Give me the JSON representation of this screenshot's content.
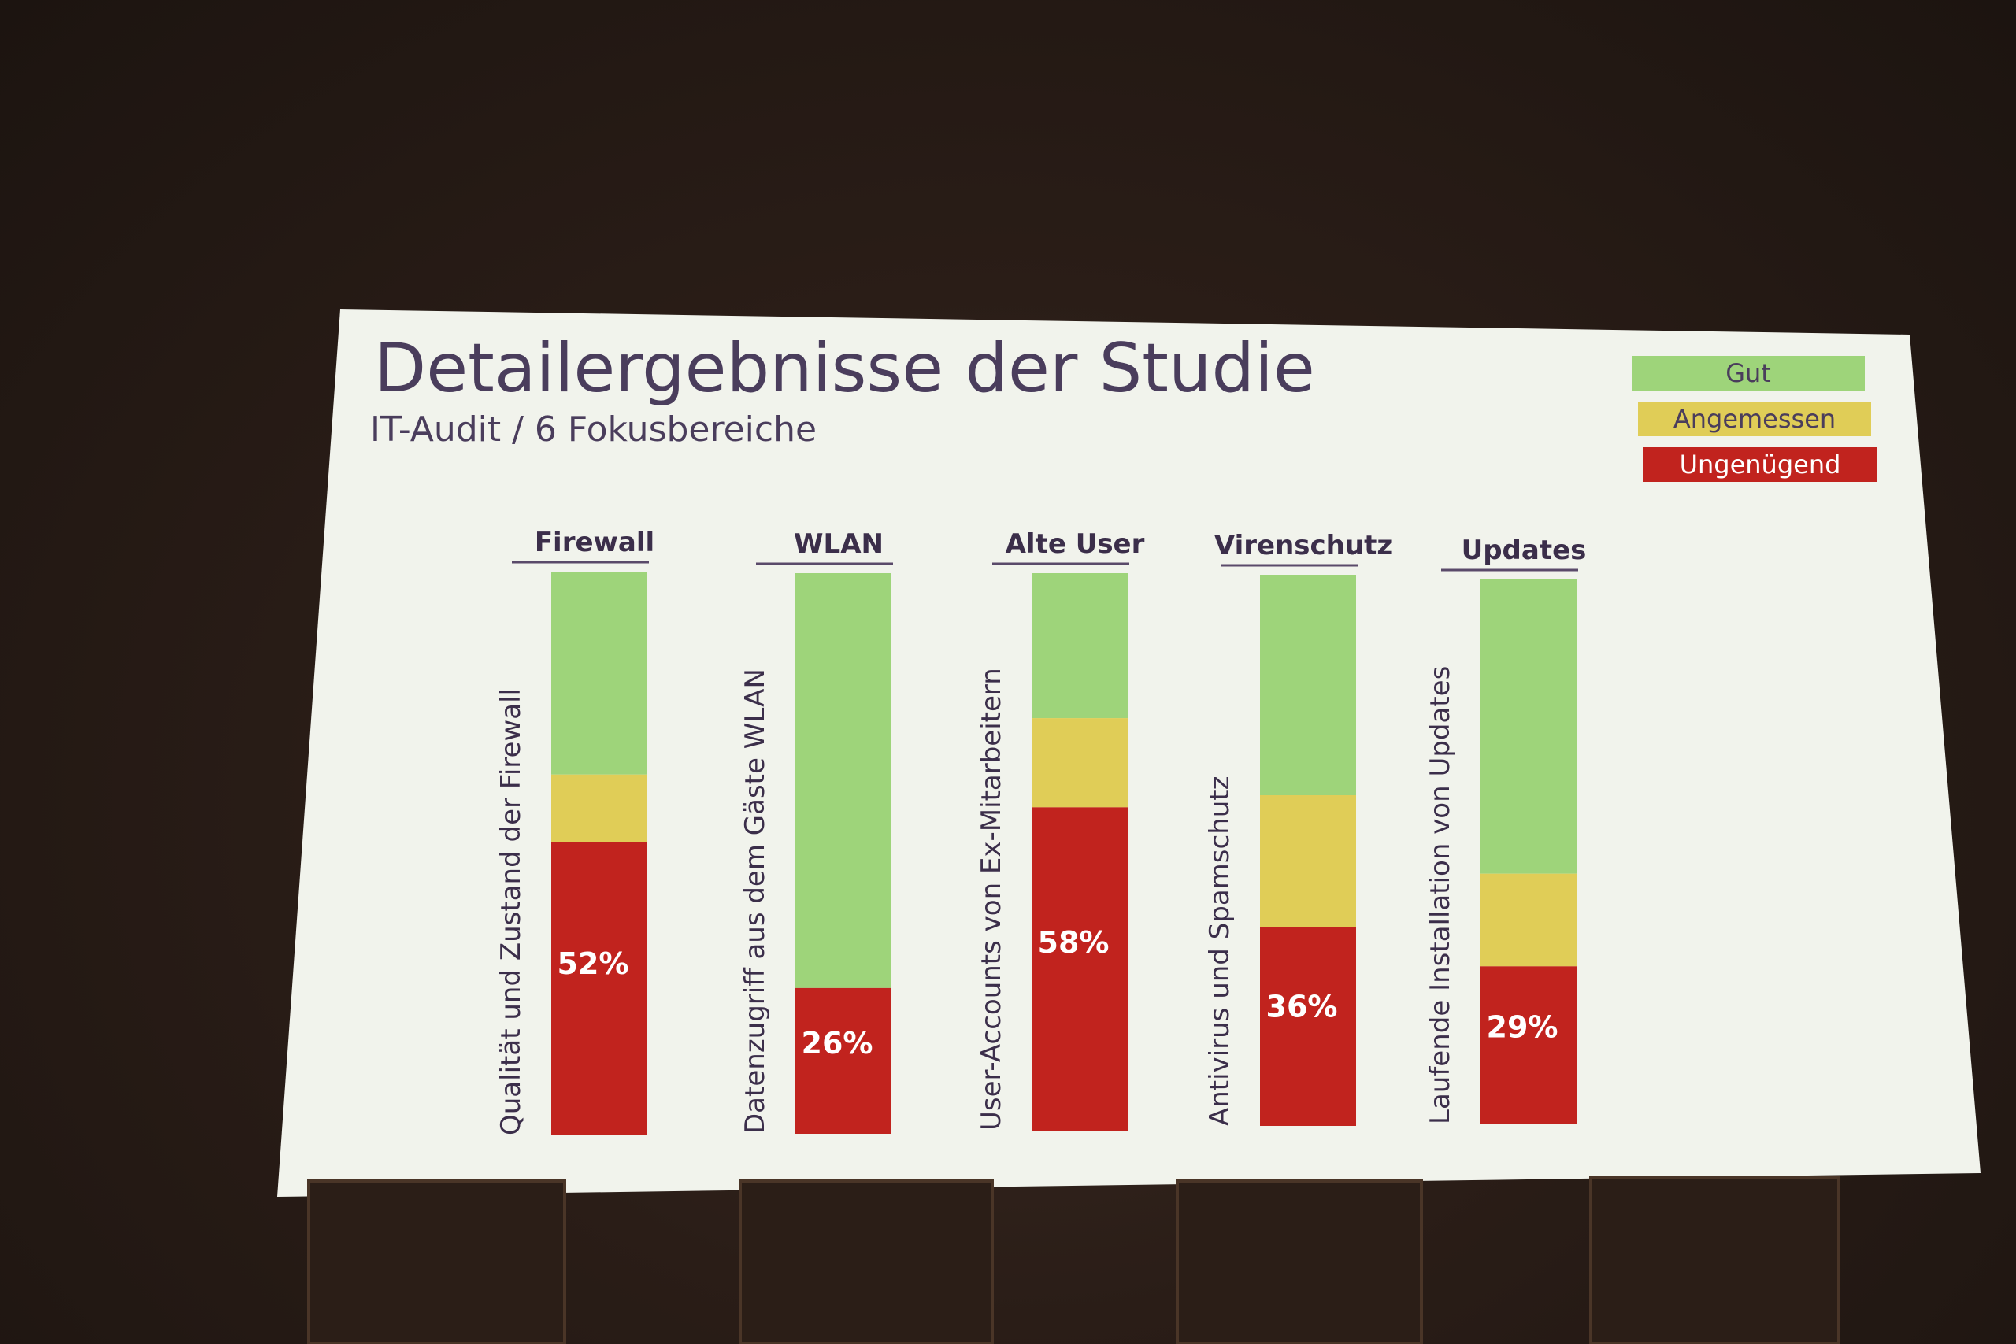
{
  "slide": {
    "title": "Detailergebnisse der Studie",
    "subtitle": "IT-Audit / 6 Fokusbereiche"
  },
  "legend": [
    {
      "label": "Gut",
      "color": "#9ed47a",
      "text_color": "#4a3d5c"
    },
    {
      "label": "Angemessen",
      "color": "#e0cd57",
      "text_color": "#4a3d5c"
    },
    {
      "label": "Ungenügend",
      "color": "#c1231e",
      "text_color": "#ffffff"
    }
  ],
  "chart_data": {
    "type": "bar",
    "stacked": true,
    "categories": [
      "Firewall",
      "WLAN",
      "Alte User",
      "Virenschutz",
      "Updates"
    ],
    "bar_descriptions": [
      "Qualität und Zustand der Firewall",
      "Datenzugriff aus dem Gäste WLAN",
      "User-Accounts von Ex-Mitarbeitern",
      "Antivirus und Spamschutz",
      "Laufende Installation von Updates"
    ],
    "series": [
      {
        "name": "Gut",
        "color": "#9ed47a",
        "values": [
          36,
          74,
          26,
          40,
          54
        ]
      },
      {
        "name": "Angemessen",
        "color": "#e0cd57",
        "values": [
          12,
          0,
          16,
          24,
          17
        ]
      },
      {
        "name": "Ungenügend",
        "color": "#c1231e",
        "values": [
          52,
          26,
          58,
          36,
          29
        ]
      }
    ],
    "data_labels": [
      "52%",
      "26%",
      "58%",
      "36%",
      "29%"
    ],
    "ylim": [
      0,
      100
    ]
  }
}
